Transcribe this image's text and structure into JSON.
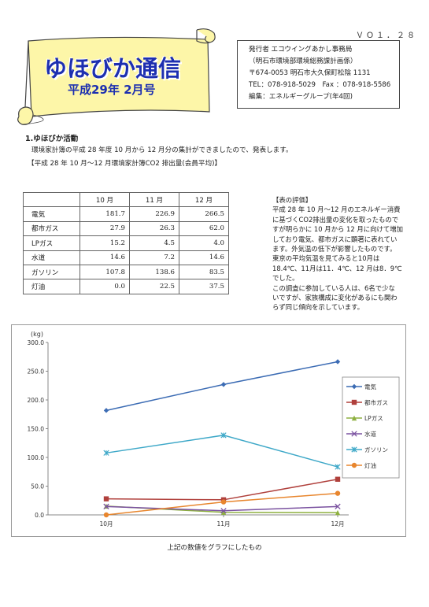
{
  "header": {
    "volume": "ＶＯ１．２８",
    "title": "ゆほびか通信",
    "issue": "平成29年 2月号"
  },
  "publisher": {
    "lines": [
      "発行者 エコウイングあかし事務局",
      "（明石市環境部環境総務課計画係）",
      "〒674-0053 明石市大久保町松陰 1131",
      "TEL：078-918-5029　Fax ：078-918-5586",
      "編集：エネルギーグループ(年4回)"
    ]
  },
  "section": {
    "title": "1.ゆほびか活動",
    "text": "環境家計簿の平成 28 年度 10 月から 12 月分の集計ができましたので、発表します。",
    "subtitle": "【平成 28 年 10 月～12 月環境家計簿CO2 排出量(会員平均)】"
  },
  "table": {
    "headers": [
      "",
      "10 月",
      "11 月",
      "12 月"
    ],
    "rows": [
      {
        "name": "電気",
        "values": [
          "181.7",
          "226.9",
          "266.5"
        ]
      },
      {
        "name": "都市ガス",
        "values": [
          "27.9",
          "26.3",
          "62.0"
        ]
      },
      {
        "name": "LPガス",
        "values": [
          "15.2",
          "4.5",
          "4.0"
        ]
      },
      {
        "name": "水道",
        "values": [
          "14.6",
          "7.2",
          "14.6"
        ]
      },
      {
        "name": "ガソリン",
        "values": [
          "107.8",
          "138.6",
          "83.5"
        ]
      },
      {
        "name": "灯油",
        "values": [
          "0.0",
          "22.5",
          "37.5"
        ]
      }
    ]
  },
  "evaluation": {
    "lines": [
      "【表の評価】",
      "平成 28 年 10 月～12 月のエネルギー消費",
      "に基づくCO2排出量の変化を取ったもので",
      "すが明らかに 10 月から 12 月に向けて増加",
      "しており電気、都市ガスに顕著に表れてい",
      "ます。外気温の低下が影響したものです。",
      "東京の平均気温を見てみると10月は",
      "18.4℃、11月は11．4℃、12 月は8．9℃",
      "でした。",
      "この調査に参加している人は、6名で少な",
      "いですが、家族構成に変化があるにも関わ",
      "らず同じ傾向を示しています。"
    ]
  },
  "chart_data": {
    "type": "line",
    "ylabel": "(kg)",
    "categories": [
      "10月",
      "11月",
      "12月"
    ],
    "ylim": [
      0,
      300
    ],
    "yticks": [
      "0.0",
      "50.0",
      "100.0",
      "150.0",
      "200.0",
      "250.0",
      "300.0"
    ],
    "grid": false,
    "legend_position": "right",
    "series": [
      {
        "name": "電気",
        "values": [
          181.7,
          226.9,
          266.5
        ],
        "color": "#3c6cb4",
        "marker": "diamond"
      },
      {
        "name": "都市ガス",
        "values": [
          27.9,
          26.3,
          62.0
        ],
        "color": "#b0403c",
        "marker": "square"
      },
      {
        "name": "LPガス",
        "values": [
          15.2,
          4.5,
          4.0
        ],
        "color": "#8eb040",
        "marker": "triangle"
      },
      {
        "name": "水道",
        "values": [
          14.6,
          7.2,
          14.6
        ],
        "color": "#7a52a0",
        "marker": "x"
      },
      {
        "name": "ガソリン",
        "values": [
          107.8,
          138.6,
          83.5
        ],
        "color": "#3ea8c8",
        "marker": "star"
      },
      {
        "name": "灯油",
        "values": [
          0.0,
          22.5,
          37.5
        ],
        "color": "#e8862e",
        "marker": "circle"
      }
    ]
  },
  "caption": "上記の数値をグラフにしたもの"
}
